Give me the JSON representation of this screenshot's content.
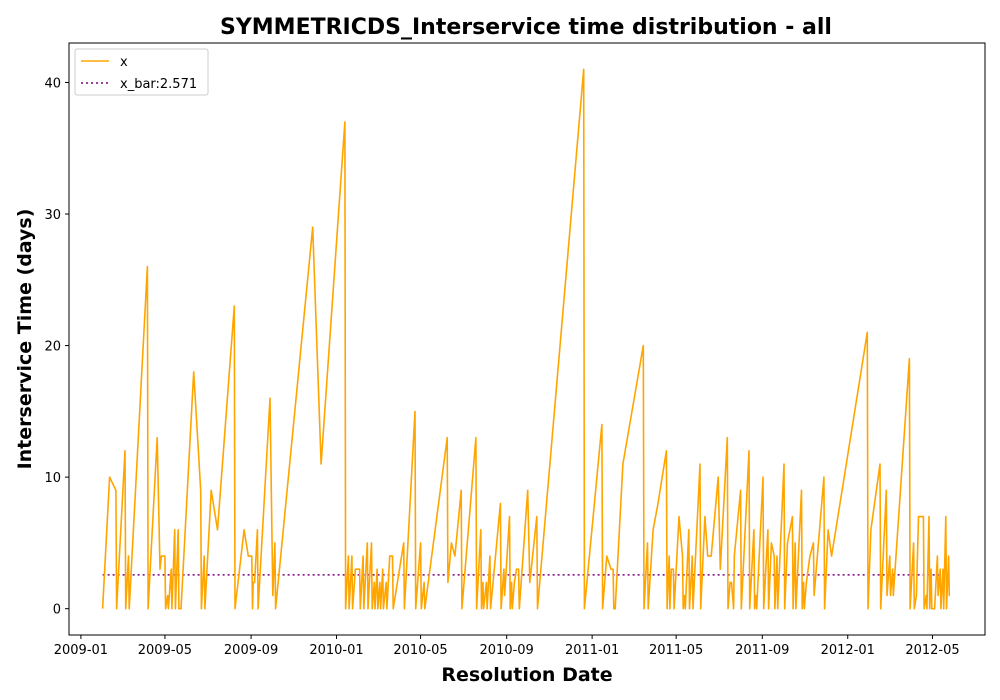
{
  "chart_data": {
    "type": "line",
    "title": "SYMMETRICDS_Interservice time distribution - all",
    "xlabel": "Resolution Date",
    "ylabel": "Interservice Time (days)",
    "x_range": [
      "2008-12-15",
      "2012-07-15"
    ],
    "ylim": [
      -2,
      43
    ],
    "x_ticks": [
      "2009-01",
      "2009-05",
      "2009-09",
      "2010-01",
      "2010-05",
      "2010-09",
      "2011-01",
      "2011-05",
      "2011-09",
      "2012-01",
      "2012-05"
    ],
    "y_ticks": [
      0,
      10,
      20,
      30,
      40
    ],
    "grid": false,
    "legend_position": "upper-left",
    "colors": {
      "x": "#ffa500",
      "x_bar": "#800080"
    },
    "series": [
      {
        "name": "x",
        "style": "solid",
        "points": [
          [
            "2009-02-01",
            0
          ],
          [
            "2009-02-11",
            10
          ],
          [
            "2009-02-20",
            9
          ],
          [
            "2009-02-21",
            0
          ],
          [
            "2009-03-05",
            12
          ],
          [
            "2009-03-06",
            0
          ],
          [
            "2009-03-10",
            4
          ],
          [
            "2009-03-11",
            0
          ],
          [
            "2009-04-06",
            26
          ],
          [
            "2009-04-07",
            0
          ],
          [
            "2009-04-20",
            13
          ],
          [
            "2009-04-24",
            3
          ],
          [
            "2009-04-26",
            4
          ],
          [
            "2009-05-01",
            4
          ],
          [
            "2009-05-02",
            0
          ],
          [
            "2009-05-05",
            1
          ],
          [
            "2009-05-06",
            0
          ],
          [
            "2009-05-10",
            3
          ],
          [
            "2009-05-11",
            0
          ],
          [
            "2009-05-15",
            6
          ],
          [
            "2009-05-16",
            0
          ],
          [
            "2009-05-20",
            6
          ],
          [
            "2009-05-21",
            0
          ],
          [
            "2009-05-24",
            0
          ],
          [
            "2009-06-11",
            18
          ],
          [
            "2009-06-21",
            9
          ],
          [
            "2009-06-22",
            0
          ],
          [
            "2009-06-26",
            4
          ],
          [
            "2009-06-27",
            0
          ],
          [
            "2009-07-06",
            9
          ],
          [
            "2009-07-15",
            6
          ],
          [
            "2009-08-08",
            23
          ],
          [
            "2009-08-09",
            0
          ],
          [
            "2009-08-22",
            6
          ],
          [
            "2009-08-28",
            4
          ],
          [
            "2009-09-02",
            4
          ],
          [
            "2009-09-03",
            0
          ],
          [
            "2009-09-04",
            2
          ],
          [
            "2009-09-06",
            2
          ],
          [
            "2009-09-10",
            6
          ],
          [
            "2009-09-11",
            0
          ],
          [
            "2009-09-28",
            16
          ],
          [
            "2009-10-02",
            1
          ],
          [
            "2009-10-05",
            5
          ],
          [
            "2009-10-06",
            0
          ],
          [
            "2009-11-28",
            29
          ],
          [
            "2009-12-10",
            11
          ],
          [
            "2010-01-13",
            37
          ],
          [
            "2010-01-14",
            0
          ],
          [
            "2010-01-18",
            4
          ],
          [
            "2010-01-19",
            0
          ],
          [
            "2010-01-23",
            4
          ],
          [
            "2010-01-24",
            0
          ],
          [
            "2010-01-28",
            3
          ],
          [
            "2010-02-03",
            3
          ],
          [
            "2010-02-04",
            0
          ],
          [
            "2010-02-08",
            4
          ],
          [
            "2010-02-09",
            0
          ],
          [
            "2010-02-14",
            5
          ],
          [
            "2010-02-15",
            0
          ],
          [
            "2010-02-20",
            5
          ],
          [
            "2010-02-21",
            0
          ],
          [
            "2010-02-24",
            2
          ],
          [
            "2010-02-25",
            0
          ],
          [
            "2010-02-28",
            3
          ],
          [
            "2010-03-01",
            0
          ],
          [
            "2010-03-04",
            2
          ],
          [
            "2010-03-05",
            0
          ],
          [
            "2010-03-08",
            3
          ],
          [
            "2010-03-09",
            0
          ],
          [
            "2010-03-13",
            2
          ],
          [
            "2010-03-14",
            0
          ],
          [
            "2010-03-18",
            4
          ],
          [
            "2010-03-22",
            4
          ],
          [
            "2010-03-23",
            0
          ],
          [
            "2010-04-07",
            5
          ],
          [
            "2010-04-08",
            0
          ],
          [
            "2010-04-23",
            15
          ],
          [
            "2010-04-24",
            0
          ],
          [
            "2010-05-01",
            5
          ],
          [
            "2010-05-02",
            0
          ],
          [
            "2010-05-06",
            2
          ],
          [
            "2010-05-07",
            0
          ],
          [
            "2010-06-08",
            13
          ],
          [
            "2010-06-09",
            2
          ],
          [
            "2010-06-14",
            5
          ],
          [
            "2010-06-19",
            4
          ],
          [
            "2010-06-28",
            9
          ],
          [
            "2010-06-29",
            0
          ],
          [
            "2010-07-19",
            13
          ],
          [
            "2010-07-20",
            0
          ],
          [
            "2010-07-26",
            6
          ],
          [
            "2010-07-27",
            0
          ],
          [
            "2010-07-29",
            2
          ],
          [
            "2010-07-30",
            0
          ],
          [
            "2010-08-03",
            2
          ],
          [
            "2010-08-04",
            0
          ],
          [
            "2010-08-08",
            4
          ],
          [
            "2010-08-09",
            0
          ],
          [
            "2010-08-23",
            8
          ],
          [
            "2010-08-24",
            0
          ],
          [
            "2010-08-28",
            3
          ],
          [
            "2010-08-29",
            1
          ],
          [
            "2010-09-05",
            7
          ],
          [
            "2010-09-06",
            0
          ],
          [
            "2010-09-08",
            2
          ],
          [
            "2010-09-09",
            0
          ],
          [
            "2010-09-12",
            2
          ],
          [
            "2010-09-15",
            3
          ],
          [
            "2010-09-18",
            3
          ],
          [
            "2010-09-19",
            0
          ],
          [
            "2010-10-01",
            9
          ],
          [
            "2010-10-04",
            2
          ],
          [
            "2010-10-14",
            7
          ],
          [
            "2010-10-15",
            0
          ],
          [
            "2010-12-20",
            41
          ],
          [
            "2010-12-21",
            0
          ],
          [
            "2011-01-15",
            14
          ],
          [
            "2011-01-16",
            0
          ],
          [
            "2011-01-22",
            4
          ],
          [
            "2011-01-28",
            3
          ],
          [
            "2011-01-31",
            3
          ],
          [
            "2011-02-01",
            0
          ],
          [
            "2011-02-03",
            0
          ],
          [
            "2011-02-14",
            11
          ],
          [
            "2011-03-15",
            20
          ],
          [
            "2011-03-16",
            0
          ],
          [
            "2011-03-21",
            5
          ],
          [
            "2011-03-22",
            0
          ],
          [
            "2011-03-29",
            6
          ],
          [
            "2011-04-05",
            8
          ],
          [
            "2011-04-17",
            12
          ],
          [
            "2011-04-18",
            0
          ],
          [
            "2011-04-21",
            4
          ],
          [
            "2011-04-22",
            0
          ],
          [
            "2011-04-24",
            3
          ],
          [
            "2011-04-27",
            3
          ],
          [
            "2011-04-28",
            0
          ],
          [
            "2011-05-05",
            7
          ],
          [
            "2011-05-10",
            4
          ],
          [
            "2011-05-11",
            0
          ],
          [
            "2011-05-13",
            1
          ],
          [
            "2011-05-14",
            0
          ],
          [
            "2011-05-19",
            6
          ],
          [
            "2011-05-20",
            0
          ],
          [
            "2011-05-24",
            4
          ],
          [
            "2011-05-25",
            0
          ],
          [
            "2011-06-04",
            11
          ],
          [
            "2011-06-05",
            0
          ],
          [
            "2011-06-11",
            7
          ],
          [
            "2011-06-15",
            4
          ],
          [
            "2011-06-20",
            4
          ],
          [
            "2011-06-30",
            10
          ],
          [
            "2011-07-03",
            3
          ],
          [
            "2011-07-13",
            13
          ],
          [
            "2011-07-14",
            0
          ],
          [
            "2011-07-17",
            2
          ],
          [
            "2011-07-19",
            2
          ],
          [
            "2011-07-22",
            0
          ],
          [
            "2011-07-23",
            4
          ],
          [
            "2011-08-01",
            9
          ],
          [
            "2011-08-02",
            0
          ],
          [
            "2011-08-13",
            12
          ],
          [
            "2011-08-14",
            0
          ],
          [
            "2011-08-20",
            6
          ],
          [
            "2011-08-21",
            0
          ],
          [
            "2011-08-23",
            1
          ],
          [
            "2011-08-24",
            0
          ],
          [
            "2011-09-02",
            10
          ],
          [
            "2011-09-03",
            0
          ],
          [
            "2011-09-09",
            6
          ],
          [
            "2011-09-10",
            0
          ],
          [
            "2011-09-14",
            5
          ],
          [
            "2011-09-18",
            4
          ],
          [
            "2011-09-19",
            0
          ],
          [
            "2011-09-22",
            4
          ],
          [
            "2011-09-23",
            0
          ],
          [
            "2011-10-02",
            11
          ],
          [
            "2011-10-03",
            0
          ],
          [
            "2011-10-07",
            5
          ],
          [
            "2011-10-14",
            7
          ],
          [
            "2011-10-15",
            0
          ],
          [
            "2011-10-18",
            5
          ],
          [
            "2011-10-19",
            0
          ],
          [
            "2011-10-27",
            9
          ],
          [
            "2011-10-28",
            0
          ],
          [
            "2011-10-30",
            2
          ],
          [
            "2011-10-31",
            0
          ],
          [
            "2011-11-03",
            2
          ],
          [
            "2011-11-08",
            4
          ],
          [
            "2011-11-13",
            5
          ],
          [
            "2011-11-14",
            1
          ],
          [
            "2011-11-28",
            10
          ],
          [
            "2011-11-29",
            0
          ],
          [
            "2011-12-04",
            6
          ],
          [
            "2011-12-09",
            4
          ],
          [
            "2012-01-29",
            21
          ],
          [
            "2012-01-30",
            0
          ],
          [
            "2012-02-03",
            6
          ],
          [
            "2012-02-16",
            11
          ],
          [
            "2012-02-17",
            0
          ],
          [
            "2012-02-25",
            9
          ],
          [
            "2012-02-26",
            1
          ],
          [
            "2012-03-01",
            4
          ],
          [
            "2012-03-02",
            1
          ],
          [
            "2012-03-05",
            3
          ],
          [
            "2012-03-06",
            1
          ],
          [
            "2012-03-29",
            19
          ],
          [
            "2012-03-30",
            0
          ],
          [
            "2012-04-04",
            5
          ],
          [
            "2012-04-05",
            0
          ],
          [
            "2012-04-08",
            1
          ],
          [
            "2012-04-11",
            7
          ],
          [
            "2012-04-18",
            7
          ],
          [
            "2012-04-19",
            0
          ],
          [
            "2012-04-22",
            1
          ],
          [
            "2012-04-23",
            0
          ],
          [
            "2012-04-26",
            7
          ],
          [
            "2012-04-27",
            0
          ],
          [
            "2012-04-29",
            3
          ],
          [
            "2012-04-30",
            0
          ],
          [
            "2012-05-04",
            0
          ],
          [
            "2012-05-08",
            4
          ],
          [
            "2012-05-09",
            1
          ],
          [
            "2012-05-12",
            3
          ],
          [
            "2012-05-13",
            0
          ],
          [
            "2012-05-16",
            3
          ],
          [
            "2012-05-17",
            0
          ],
          [
            "2012-05-20",
            7
          ],
          [
            "2012-05-21",
            0
          ],
          [
            "2012-05-24",
            4
          ],
          [
            "2012-05-25",
            1
          ],
          [
            "2012-05-26",
            1
          ]
        ]
      },
      {
        "name": "x_bar:2.571",
        "style": "dotted",
        "points": [
          [
            "2009-02-01",
            2.571
          ],
          [
            "2012-05-26",
            2.571
          ]
        ]
      }
    ]
  }
}
